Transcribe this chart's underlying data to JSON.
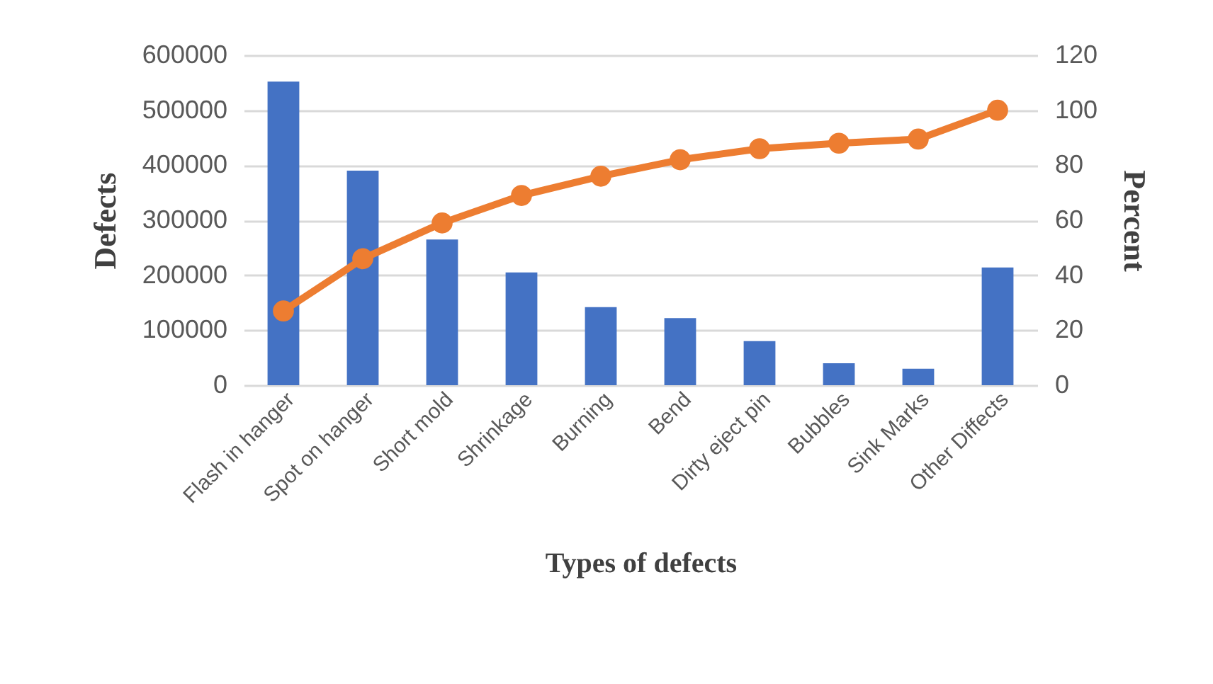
{
  "chart_data": {
    "type": "bar",
    "xlabel": "Types of defects",
    "ylabel": "Defects",
    "y2label": "Percent",
    "categories": [
      "Flash in hanger",
      "Spot on hanger",
      "Short mold",
      "Shrinkage",
      "Burning",
      "Bend",
      "Dirty eject pin",
      "Bubbles",
      "Sink Marks",
      "Other Diffects"
    ],
    "series": [
      {
        "color": "#4472c4",
        "values": [
          552000,
          390000,
          265000,
          205000,
          142000,
          122000,
          80000,
          40000,
          30000,
          214000
        ]
      },
      {
        "type": "line",
        "axis": "y2",
        "color": "#ed7d31",
        "values": [
          27,
          46,
          59,
          69,
          76,
          82,
          86,
          88,
          89.5,
          100
        ]
      }
    ],
    "ylim": [
      0,
      600000
    ],
    "yticks": [
      0,
      100000,
      200000,
      300000,
      400000,
      500000,
      600000
    ],
    "y2lim": [
      0,
      120
    ],
    "y2ticks": [
      0,
      20,
      40,
      60,
      80,
      100,
      120
    ],
    "grid": "y",
    "marker": "circle"
  }
}
